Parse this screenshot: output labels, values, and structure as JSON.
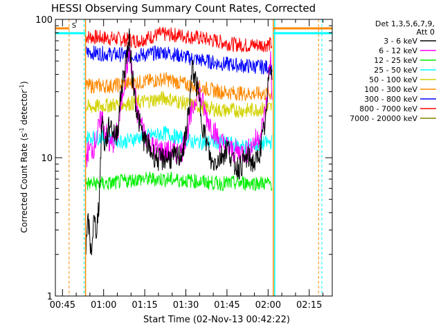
{
  "chart_data": {
    "type": "line",
    "title": "HESSI Observing Summary Count Rates, Corrected",
    "xlabel": "Start Time (02-Nov-13 00:42:22)",
    "ylabel_main": "Corrected Count Rate (s",
    "ylabel_sup1": "-1",
    "ylabel_mid": " detector",
    "ylabel_sup2": "-1",
    "ylabel_end": ")",
    "yscale": "log",
    "ylim": [
      1,
      100
    ],
    "y_ticks": [
      {
        "value": 1,
        "label": "1"
      },
      {
        "value": 10,
        "label": "10"
      },
      {
        "value": 100,
        "label": "100"
      }
    ],
    "xlim_minutes": [
      0,
      101
    ],
    "x_ticks": [
      {
        "minute": 2.6,
        "label": "00:45"
      },
      {
        "minute": 17.6,
        "label": "01:00"
      },
      {
        "minute": 32.6,
        "label": "01:15"
      },
      {
        "minute": 47.6,
        "label": "01:30"
      },
      {
        "minute": 62.6,
        "label": "01:45"
      },
      {
        "minute": 77.6,
        "label": "02:00"
      },
      {
        "minute": 92.6,
        "label": "02:15"
      }
    ],
    "legend": {
      "header": [
        "Det 1,3,5,6,7,9,",
        "Att 0"
      ],
      "entries": [
        {
          "label": "3 - 6 keV",
          "color": "#000000"
        },
        {
          "label": "6 - 12 keV",
          "color": "#ff00ff"
        },
        {
          "label": "12 - 25 keV",
          "color": "#00ee00"
        },
        {
          "label": "25 - 50 keV",
          "color": "#00ffff"
        },
        {
          "label": "50 - 100 keV",
          "color": "#d2d200"
        },
        {
          "label": "100 - 300 keV",
          "color": "#ff8800"
        },
        {
          "label": "300 - 800 keV",
          "color": "#0000ff"
        },
        {
          "label": "800 - 7000 keV",
          "color": "#ff0000"
        },
        {
          "label": "7000 - 20000 keV",
          "color": "#808000"
        }
      ]
    },
    "flags": [
      {
        "label": "S",
        "color": "#ff8800",
        "x_minutes": [
          0,
          5
        ]
      },
      {
        "color": "#00ffff",
        "x_minutes": [
          0,
          11
        ]
      },
      {
        "color": "#ff8800",
        "x_minutes": [
          79.5,
          101
        ]
      },
      {
        "color": "#00ffff",
        "x_minutes": [
          79.5,
          101
        ]
      }
    ],
    "vertical_markers": [
      {
        "minute": 5,
        "color": "#ff8800",
        "style": "dashed"
      },
      {
        "minute": 10.5,
        "color": "#00ffff",
        "style": "dashed"
      },
      {
        "minute": 11,
        "color": "#ff8800",
        "style": "solid"
      },
      {
        "minute": 79.5,
        "color": "#ff8800",
        "style": "solid"
      },
      {
        "minute": 80,
        "color": "#00ffff",
        "style": "solid"
      },
      {
        "minute": 96,
        "color": "#ff8800",
        "style": "dashed"
      },
      {
        "minute": 97.2,
        "color": "#00ffff",
        "style": "dashed"
      }
    ],
    "series": [
      {
        "name": "800 - 7000 keV",
        "color": "#ff0000",
        "x": [
          11,
          20,
          30,
          38,
          45,
          55,
          65,
          70,
          79
        ],
        "y": [
          75,
          73,
          70,
          78,
          77,
          72,
          66,
          65,
          66
        ]
      },
      {
        "name": "300 - 800 keV",
        "color": "#0000ff",
        "x": [
          11,
          20,
          30,
          40,
          50,
          60,
          70,
          79
        ],
        "y": [
          58,
          56,
          55,
          58,
          52,
          48,
          46,
          45
        ]
      },
      {
        "name": "100 - 300 keV",
        "color": "#ff8800",
        "x": [
          11,
          20,
          30,
          40,
          50,
          60,
          70,
          79
        ],
        "y": [
          33,
          33,
          35,
          37,
          33,
          30,
          29,
          29
        ]
      },
      {
        "name": "50 - 100 keV",
        "color": "#d2d200",
        "x": [
          11,
          20,
          30,
          40,
          50,
          60,
          70,
          79
        ],
        "y": [
          23,
          24,
          25,
          27,
          24,
          22,
          22,
          23
        ]
      },
      {
        "name": "25 - 50 keV",
        "color": "#00ffff",
        "x": [
          11,
          15,
          20,
          25,
          30,
          40,
          45,
          50,
          55,
          60,
          70,
          79
        ],
        "y": [
          14,
          14,
          14,
          13,
          14,
          15,
          14,
          13,
          13,
          13,
          12,
          13
        ]
      },
      {
        "name": "6 - 12 keV",
        "color": "#ff00ff",
        "x": [
          11,
          12,
          14,
          15,
          17,
          18,
          20,
          22,
          23,
          24,
          27,
          30,
          35,
          40,
          46,
          49,
          52,
          55,
          60,
          65,
          70,
          75,
          77,
          78.5,
          79
        ],
        "y": [
          10,
          11,
          12,
          14,
          20,
          16,
          12,
          14,
          16,
          25,
          60,
          20,
          12,
          11,
          11,
          18,
          32,
          20,
          13,
          11,
          11,
          15,
          24,
          55,
          30
        ]
      },
      {
        "name": "12 - 25 keV",
        "color": "#00ee00",
        "x": [
          11,
          20,
          30,
          40,
          50,
          60,
          70,
          79
        ],
        "y": [
          6.5,
          6.5,
          7,
          7,
          6.8,
          6.5,
          6.6,
          6.5
        ]
      },
      {
        "name": "3 - 6 keV",
        "color": "#000000",
        "x": [
          11,
          12,
          13,
          14,
          15,
          16,
          17,
          18,
          20,
          22,
          23,
          24,
          26,
          27,
          28,
          30,
          32,
          35,
          38,
          40,
          45,
          47,
          49,
          50,
          52,
          54,
          56,
          57,
          60,
          63,
          65,
          67,
          70,
          73,
          75,
          77,
          78,
          78.5,
          79
        ],
        "y": [
          2,
          3.5,
          2,
          3.5,
          3,
          5,
          20,
          12,
          18,
          14,
          18,
          30,
          55,
          70,
          40,
          20,
          14,
          11,
          9.5,
          10,
          10,
          12,
          25,
          45,
          30,
          16,
          11,
          9,
          10,
          12,
          9,
          8.5,
          10,
          9,
          12,
          20,
          45,
          55,
          35
        ]
      }
    ]
  }
}
